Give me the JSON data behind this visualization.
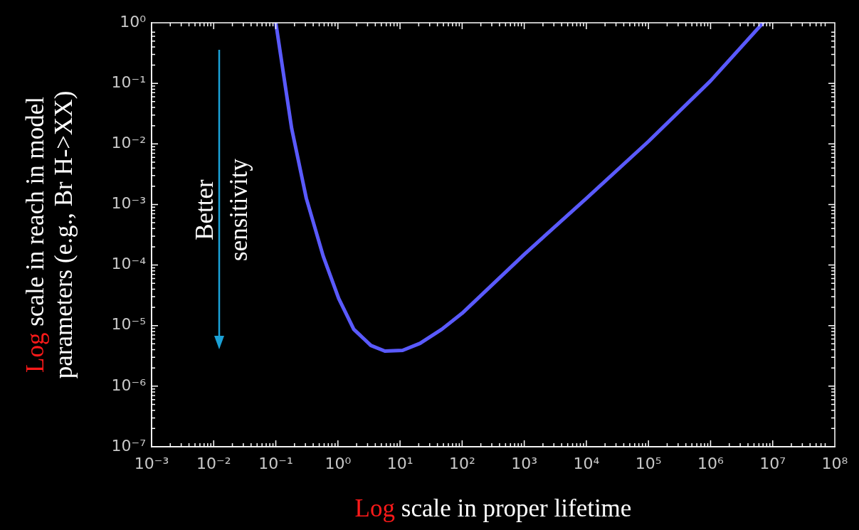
{
  "chart_data": {
    "type": "line",
    "xlabel": "Log scale in proper lifetime",
    "ylabel": "Log scale in reach in model parameters (e.g.,  Br H->XX)",
    "annotations": [
      "Better sensitivity"
    ],
    "log": "xy",
    "grid": false,
    "legend": false,
    "marker": "none",
    "line_style": "solid",
    "xlim": [
      0.001,
      100000000
    ],
    "ylim": [
      1e-07,
      1
    ],
    "xticks": [
      {
        "value": 0.001,
        "label": "10⁻³"
      },
      {
        "value": 0.01,
        "label": "10⁻²"
      },
      {
        "value": 0.1,
        "label": "10⁻¹"
      },
      {
        "value": 1,
        "label": "10⁰"
      },
      {
        "value": 10,
        "label": "10¹"
      },
      {
        "value": 100,
        "label": "10²"
      },
      {
        "value": 1000,
        "label": "10³"
      },
      {
        "value": 10000,
        "label": "10⁴"
      },
      {
        "value": 100000,
        "label": "10⁵"
      },
      {
        "value": 1000000,
        "label": "10⁶"
      },
      {
        "value": 10000000,
        "label": "10⁷"
      },
      {
        "value": 100000000,
        "label": "10⁸"
      }
    ],
    "yticks": [
      {
        "value": 1e-07,
        "label": "10⁻⁷"
      },
      {
        "value": 1e-06,
        "label": "10⁻⁶"
      },
      {
        "value": 1e-05,
        "label": "10⁻⁵"
      },
      {
        "value": 0.0001,
        "label": "10⁻⁴"
      },
      {
        "value": 0.001,
        "label": "10⁻³"
      },
      {
        "value": 0.01,
        "label": "10⁻²"
      },
      {
        "value": 0.1,
        "label": "10⁻¹"
      },
      {
        "value": 1,
        "label": "10⁰"
      }
    ],
    "series": [
      {
        "color": "#5a5aff",
        "x": [
          0.1,
          0.18,
          0.31,
          0.58,
          1.03,
          1.8,
          3.4,
          5.7,
          11,
          21,
          47,
          100,
          1000,
          10000,
          100000,
          1000000,
          7000000
        ],
        "values": [
          1,
          0.018,
          0.00126,
          0.00014,
          2.8e-05,
          8.7e-06,
          4.7e-06,
          3.8e-06,
          3.9e-06,
          5.1e-06,
          8.7e-06,
          1.6e-05,
          0.00015,
          0.00126,
          0.011,
          0.11,
          1
        ]
      }
    ]
  }
}
